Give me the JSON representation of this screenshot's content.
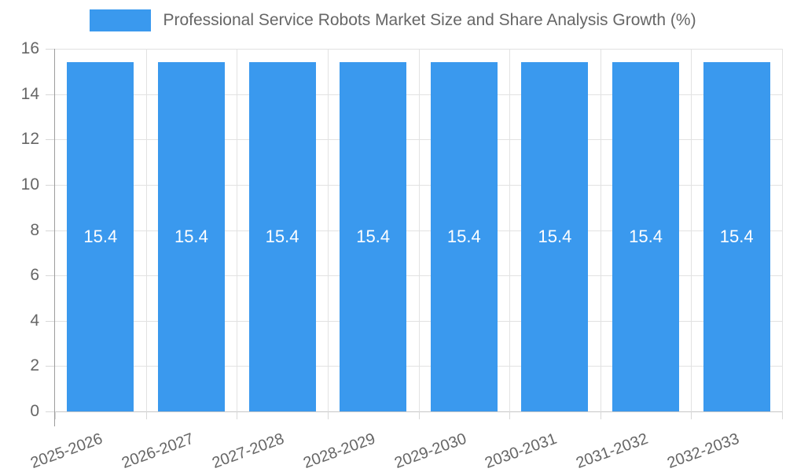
{
  "legend": {
    "label": "Professional Service Robots Market Size and Share Analysis Growth (%)",
    "swatch_color": "#3A99EE"
  },
  "chart_data": {
    "type": "bar",
    "title": "Professional Service Robots Market Size and Share Analysis Growth (%)",
    "categories": [
      "2025-2026",
      "2026-2027",
      "2027-2028",
      "2028-2029",
      "2029-2030",
      "2030-2031",
      "2031-2032",
      "2032-2033"
    ],
    "values": [
      15.4,
      15.4,
      15.4,
      15.4,
      15.4,
      15.4,
      15.4,
      15.4
    ],
    "value_labels": [
      "15.4",
      "15.4",
      "15.4",
      "15.4",
      "15.4",
      "15.4",
      "15.4",
      "15.4"
    ],
    "xlabel": "",
    "ylabel": "",
    "ylim": [
      0,
      16
    ],
    "yticks": [
      0,
      2,
      4,
      6,
      8,
      10,
      12,
      14,
      16
    ],
    "grid": true,
    "legend_position": "top",
    "colors": {
      "bar": "#3A99EE",
      "bar_value_text": "#FFFFFF",
      "grid_line": "#E2E2E2",
      "tick_line": "#D8D8D8",
      "x_axis_line": "#C6C6C6",
      "y_axis_line": "#9C9C9C",
      "tick_text": "#666666"
    }
  }
}
